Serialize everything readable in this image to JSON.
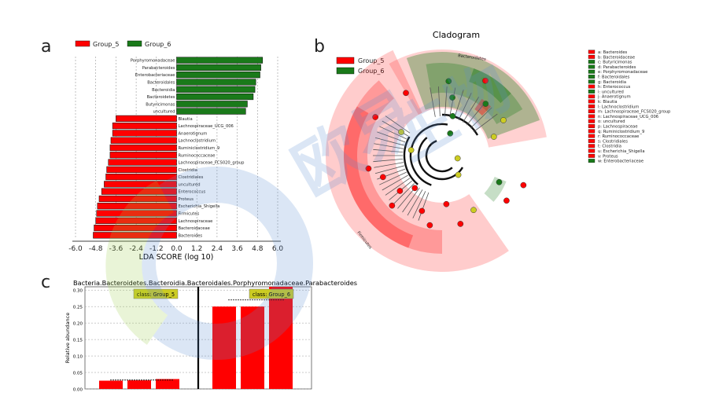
{
  "colors": {
    "group5": "#ff0000",
    "group6": "#1a7a1a",
    "class_bg": "#cccc22",
    "wm_blue": "#5b8fcf",
    "wm_green": "#9acd4a"
  },
  "panel_a": {
    "letter": "a",
    "legend": [
      "Group_5",
      "Group_6"
    ],
    "chart_data": {
      "type": "bar",
      "orientation": "horizontal",
      "xlabel": "LDA SCORE (log 10)",
      "xlim": [
        -6.0,
        6.0
      ],
      "xticks": [
        "-6.0",
        "-4.8",
        "-3.6",
        "-2.4",
        "-1.2",
        "0.0",
        "1.2",
        "2.4",
        "3.6",
        "4.8",
        "6.0"
      ],
      "grid": true,
      "categories": [
        "Porphyromonadaceae",
        "Parabacteroides",
        "Enterobacteriaceae",
        "Bacteroidales",
        "Bacteroidia",
        "Bacteroidetes",
        "Butyricimonas",
        "uncultured",
        "Blautia",
        "Lachnospiraceae_UCG_006",
        "Anaerotignum",
        "Lachnoclostridium",
        "Ruminiclostridium_9",
        "Ruminococcaceae",
        "Lachnospiraceae_FCS020_group",
        "Clostridia",
        "Clostridiales",
        "uncultured",
        "Enterococcus",
        "Proteus",
        "Escherichia_Shigella",
        "Firmicutes",
        "Lachnospiraceae",
        "Bacteroidaceae",
        "Bacteroides"
      ],
      "series": [
        {
          "name": "Group_5/Group_6",
          "values": [
            5.1,
            5.0,
            4.95,
            4.7,
            4.65,
            4.55,
            4.2,
            4.1,
            -3.6,
            -3.8,
            -3.8,
            -3.9,
            -3.95,
            -3.95,
            -4.05,
            -4.15,
            -4.2,
            -4.3,
            -4.45,
            -4.6,
            -4.7,
            -4.75,
            -4.8,
            -4.9,
            -4.95
          ]
        }
      ]
    }
  },
  "panel_b": {
    "letter": "b",
    "title": "Cladogram",
    "legend": [
      "Group_5",
      "Group_6"
    ],
    "key": [
      "a: Bacteroides",
      "b: Bacteroidaceae",
      "c: Butyricimonas",
      "d: Parabacteroides",
      "e: Porphyromonadaceae",
      "f: Bacteroidales",
      "g: Bacteroidia",
      "h: Enterococcus",
      "i: uncultured",
      "j: Anaerotignum",
      "k: Blautia",
      "l: Lachnoclostridium",
      "m: Lachnospiraceae_FCS020_group",
      "n: Lachnospiraceae_UCG_006",
      "o: uncultured",
      "p: Lachnospiraceae",
      "q: Ruminiclostridium_9",
      "r: Ruminococcaceae",
      "s: Clostridiales",
      "t: Clostridia",
      "u: Escherichia_Shigella",
      "v: Proteus",
      "w: Enterobacteriaceae"
    ],
    "key_groups": [
      "g5",
      "g5",
      "g6",
      "g6",
      "g6",
      "g6",
      "g6",
      "g5",
      "g6",
      "g5",
      "g5",
      "g5",
      "g5",
      "g5",
      "g5",
      "g5",
      "g5",
      "g5",
      "g5",
      "g5",
      "g5",
      "g5",
      "g6"
    ],
    "arc_labels": [
      "Bacteroidetes",
      "Firmicutes"
    ]
  },
  "panel_c": {
    "letter": "c",
    "title": "Bacteria.Bacteroidetes.Bacteroidia.Bacteroidales.Porphyromonadaceae.Parabacteroides",
    "class_labels": [
      "class: Group_5",
      "class: Group_6"
    ],
    "chart_data": {
      "type": "bar",
      "ylabel": "Relative abundance",
      "ylim": [
        0,
        0.31
      ],
      "yticks": [
        "0.00",
        "0.05",
        "0.10",
        "0.15",
        "0.20",
        "0.25",
        "0.30"
      ],
      "groups": [
        {
          "name": "Group_5",
          "values": [
            0.025,
            0.026,
            0.03
          ],
          "mean": 0.027
        },
        {
          "name": "Group_6",
          "values": [
            0.25,
            0.25,
            0.31
          ],
          "mean": 0.27
        }
      ]
    }
  }
}
